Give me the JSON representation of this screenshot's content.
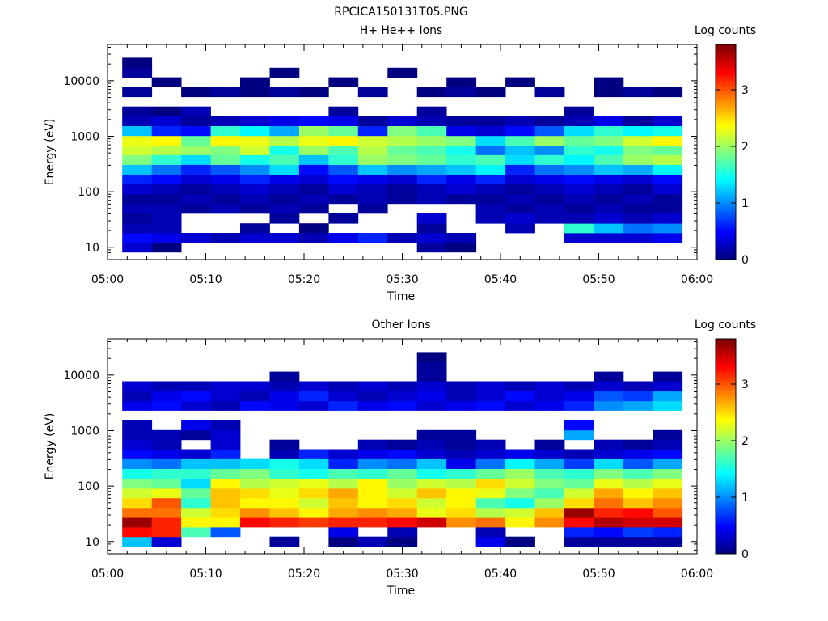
{
  "figure": {
    "title": "RPCICA150131T05.PNG"
  },
  "chart_data": [
    {
      "type": "heatmap",
      "title": "H+ He++ Ions",
      "xlabel": "Time",
      "ylabel": "Energy (eV)",
      "x_ticks": [
        "05:00",
        "05:10",
        "05:20",
        "05:30",
        "05:40",
        "05:50",
        "06:00"
      ],
      "y_scale": "log",
      "y_ticks": [
        "10",
        "100",
        "1000",
        "10000"
      ],
      "ylim": [
        6,
        45000
      ],
      "colorbar": {
        "label": "Log counts",
        "ticks": [
          "0",
          "1",
          "2",
          "3"
        ],
        "range": [
          0,
          3.8
        ],
        "colormap": "jet"
      },
      "time_bins": [
        "05:03",
        "05:06",
        "05:09",
        "05:12",
        "05:15",
        "05:18",
        "05:21",
        "05:24",
        "05:27",
        "05:30",
        "05:33",
        "05:36",
        "05:39",
        "05:42",
        "05:45",
        "05:48",
        "05:51",
        "05:54",
        "05:57"
      ],
      "energy_bins_eV": [
        10,
        15,
        22,
        33,
        50,
        75,
        110,
        170,
        250,
        380,
        560,
        840,
        1250,
        1900,
        2800,
        4200,
        6300,
        9500,
        14000,
        21000,
        32000
      ],
      "log_counts": [
        [
          0.3,
          0.0,
          null,
          null,
          null,
          null,
          null,
          null,
          null,
          null,
          0.1,
          0.0,
          null,
          null,
          null,
          null,
          null,
          null,
          null
        ],
        [
          0.5,
          0.4,
          0.3,
          0.2,
          0.3,
          0.3,
          0.2,
          0.4,
          0.6,
          0.2,
          0.3,
          0.2,
          null,
          null,
          null,
          0.3,
          0.3,
          0.3,
          0.4
        ],
        [
          0.2,
          0.2,
          null,
          null,
          0.1,
          null,
          0.0,
          null,
          null,
          null,
          0.1,
          null,
          null,
          0.2,
          null,
          1.6,
          1.2,
          0.9,
          1.0
        ],
        [
          0.1,
          0.2,
          null,
          null,
          null,
          0.1,
          null,
          0.1,
          null,
          null,
          0.3,
          null,
          0.2,
          0.3,
          0.2,
          0.2,
          0.3,
          0.2,
          0.3
        ],
        [
          0.2,
          0.2,
          0.1,
          0.2,
          0.1,
          0.2,
          0.1,
          null,
          0.1,
          null,
          null,
          null,
          0.2,
          0.1,
          0.2,
          0.1,
          0.2,
          0.1,
          0.1
        ],
        [
          0.1,
          0.1,
          0.2,
          0.1,
          0.2,
          0.1,
          0.2,
          0.1,
          0.2,
          0.1,
          0.2,
          0.1,
          0.1,
          0.2,
          0.1,
          0.2,
          0.1,
          0.2,
          0.1
        ],
        [
          0.3,
          0.2,
          0.1,
          0.2,
          0.3,
          0.2,
          0.1,
          0.3,
          0.2,
          0.1,
          0.2,
          0.3,
          0.2,
          0.1,
          0.2,
          0.3,
          0.2,
          0.1,
          0.3
        ],
        [
          0.6,
          0.5,
          0.3,
          0.4,
          0.6,
          0.4,
          0.3,
          0.5,
          0.4,
          0.3,
          0.6,
          0.4,
          0.6,
          0.3,
          0.4,
          0.5,
          0.4,
          0.3,
          0.5
        ],
        [
          1.2,
          0.9,
          0.6,
          0.8,
          1.0,
          1.3,
          0.5,
          0.8,
          1.2,
          1.0,
          1.1,
          1.2,
          1.4,
          0.6,
          0.9,
          1.0,
          1.2,
          1.1,
          1.4
        ],
        [
          1.9,
          1.6,
          1.3,
          1.8,
          1.5,
          1.7,
          1.2,
          1.6,
          2.0,
          1.9,
          1.8,
          1.6,
          1.7,
          1.3,
          1.6,
          1.4,
          1.7,
          2.0,
          2.1
        ],
        [
          2.2,
          2.1,
          2.0,
          1.9,
          2.2,
          1.5,
          2.0,
          1.7,
          2.1,
          1.8,
          1.7,
          1.5,
          0.9,
          1.2,
          1.0,
          1.6,
          1.5,
          1.9,
          1.8
        ],
        [
          2.3,
          2.4,
          1.8,
          2.4,
          2.3,
          2.1,
          2.3,
          2.4,
          2.2,
          2.1,
          2.0,
          1.9,
          1.3,
          1.7,
          2.0,
          1.8,
          1.9,
          2.2,
          2.4
        ],
        [
          1.2,
          0.6,
          0.5,
          1.6,
          1.4,
          1.1,
          2.0,
          1.8,
          0.6,
          1.9,
          1.7,
          0.4,
          0.3,
          0.5,
          0.8,
          1.3,
          1.6,
          1.4,
          1.5
        ],
        [
          0.2,
          0.3,
          0.1,
          0.2,
          0.3,
          0.4,
          0.5,
          0.4,
          0.1,
          0.3,
          0.2,
          0.1,
          0.1,
          0.2,
          0.1,
          0.2,
          0.4,
          0.1,
          0.3
        ],
        [
          0.1,
          0.0,
          0.2,
          null,
          null,
          null,
          null,
          0.1,
          null,
          null,
          0.1,
          null,
          null,
          null,
          null,
          0.1,
          null,
          null,
          null
        ],
        [
          null,
          null,
          null,
          null,
          null,
          null,
          null,
          null,
          null,
          null,
          null,
          null,
          null,
          null,
          null,
          null,
          null,
          null,
          null
        ],
        [
          0.1,
          null,
          0.0,
          0.1,
          0.0,
          0.1,
          0.0,
          null,
          0.1,
          null,
          0.0,
          0.1,
          0.0,
          null,
          0.1,
          null,
          0.0,
          0.1,
          0.0
        ],
        [
          null,
          0.0,
          null,
          null,
          0.0,
          null,
          null,
          0.0,
          null,
          null,
          null,
          0.0,
          null,
          0.0,
          null,
          null,
          0.0,
          null,
          null
        ],
        [
          0.1,
          null,
          null,
          null,
          null,
          0.0,
          null,
          null,
          null,
          0.0,
          null,
          null,
          null,
          null,
          null,
          null,
          null,
          null,
          null
        ],
        [
          0.0,
          null,
          null,
          null,
          null,
          null,
          null,
          null,
          null,
          null,
          null,
          null,
          null,
          null,
          null,
          null,
          null,
          null,
          null
        ],
        [
          null,
          null,
          null,
          null,
          null,
          null,
          null,
          null,
          null,
          null,
          null,
          null,
          null,
          null,
          null,
          null,
          null,
          null,
          null
        ]
      ]
    },
    {
      "type": "heatmap",
      "title": "Other Ions",
      "xlabel": "Time",
      "ylabel": "Energy (eV)",
      "x_ticks": [
        "05:00",
        "05:10",
        "05:20",
        "05:30",
        "05:40",
        "05:50",
        "06:00"
      ],
      "y_scale": "log",
      "y_ticks": [
        "10",
        "100",
        "1000",
        "10000"
      ],
      "ylim": [
        6,
        45000
      ],
      "colorbar": {
        "label": "Log counts",
        "ticks": [
          "0",
          "1",
          "2",
          "3"
        ],
        "range": [
          0,
          3.8
        ],
        "colormap": "jet"
      },
      "time_bins": [
        "05:03",
        "05:06",
        "05:09",
        "05:12",
        "05:15",
        "05:18",
        "05:21",
        "05:24",
        "05:27",
        "05:30",
        "05:33",
        "05:36",
        "05:39",
        "05:42",
        "05:45",
        "05:48",
        "05:51",
        "05:54",
        "05:57"
      ],
      "energy_bins_eV": [
        10,
        15,
        22,
        33,
        50,
        75,
        110,
        170,
        250,
        380,
        560,
        840,
        1250,
        1900,
        2800,
        4200,
        6300,
        9500,
        14000,
        21000,
        32000
      ],
      "log_counts": [
        [
          1.2,
          0.3,
          null,
          null,
          null,
          0.1,
          null,
          0.0,
          0.2,
          0.0,
          null,
          null,
          0.4,
          0.0,
          null,
          0.1,
          0.1,
          0.1,
          0.1
        ],
        [
          3.3,
          3.2,
          1.7,
          0.8,
          null,
          null,
          null,
          0.4,
          null,
          0.2,
          null,
          null,
          0.2,
          null,
          null,
          0.6,
          0.5,
          0.7,
          0.6
        ],
        [
          3.7,
          3.2,
          2.4,
          2.4,
          3.3,
          3.2,
          3.1,
          3.2,
          3.2,
          3.3,
          3.5,
          2.8,
          2.9,
          2.4,
          2.8,
          3.3,
          3.6,
          3.5,
          3.5
        ],
        [
          2.9,
          2.9,
          2.2,
          2.5,
          2.8,
          2.6,
          2.4,
          2.7,
          2.8,
          2.7,
          2.3,
          2.5,
          2.1,
          2.2,
          2.6,
          3.7,
          3.2,
          3.3,
          3.0
        ],
        [
          2.5,
          3.0,
          1.6,
          2.6,
          2.4,
          2.4,
          2.2,
          2.6,
          2.4,
          2.5,
          2.2,
          2.4,
          1.7,
          1.5,
          2.0,
          2.5,
          2.9,
          2.6,
          2.8
        ],
        [
          2.2,
          2.3,
          1.8,
          2.6,
          2.5,
          2.3,
          2.5,
          2.7,
          2.4,
          2.2,
          2.6,
          2.4,
          2.3,
          1.9,
          1.7,
          2.2,
          2.7,
          2.4,
          2.6
        ],
        [
          1.9,
          1.8,
          1.3,
          2.4,
          2.1,
          2.2,
          2.3,
          2.1,
          2.4,
          2.0,
          2.2,
          2.1,
          2.5,
          2.2,
          1.9,
          1.8,
          2.3,
          2.1,
          2.3
        ],
        [
          1.5,
          1.6,
          1.6,
          1.8,
          1.9,
          1.6,
          1.5,
          1.7,
          1.6,
          1.8,
          1.5,
          1.6,
          1.8,
          2.0,
          1.7,
          1.6,
          1.9,
          1.7,
          1.9
        ],
        [
          1.0,
          0.9,
          1.2,
          1.2,
          1.3,
          1.5,
          1.3,
          0.6,
          1.0,
          0.9,
          1.2,
          0.4,
          0.9,
          1.4,
          1.1,
          0.7,
          1.3,
          0.8,
          1.1
        ],
        [
          0.5,
          0.4,
          0.3,
          0.6,
          null,
          0.2,
          0.6,
          0.3,
          0.4,
          0.5,
          0.3,
          0.2,
          0.3,
          0.4,
          0.3,
          0.2,
          0.3,
          0.4,
          0.5
        ],
        [
          0.3,
          0.2,
          null,
          0.3,
          null,
          0.1,
          null,
          null,
          0.2,
          0.1,
          0.2,
          0.1,
          0.2,
          null,
          0.1,
          null,
          0.2,
          0.1,
          0.2
        ],
        [
          0.2,
          0.2,
          0.1,
          0.3,
          null,
          null,
          null,
          null,
          null,
          null,
          0.1,
          0.1,
          null,
          null,
          null,
          1.1,
          null,
          null,
          0.1
        ],
        [
          0.2,
          null,
          0.4,
          0.2,
          null,
          null,
          null,
          null,
          null,
          null,
          null,
          null,
          null,
          null,
          null,
          0.5,
          null,
          null,
          null
        ],
        [
          null,
          null,
          null,
          null,
          null,
          null,
          null,
          null,
          null,
          null,
          null,
          null,
          null,
          null,
          null,
          null,
          null,
          null,
          null
        ],
        [
          0.4,
          0.5,
          0.3,
          0.2,
          0.5,
          0.4,
          0.3,
          0.6,
          0.4,
          0.5,
          0.3,
          0.4,
          0.5,
          0.3,
          0.4,
          0.6,
          1.0,
          1.1,
          1.3
        ],
        [
          0.2,
          0.4,
          0.5,
          0.3,
          0.2,
          0.4,
          0.6,
          0.3,
          0.2,
          0.3,
          0.4,
          0.2,
          0.3,
          0.5,
          0.3,
          0.4,
          0.8,
          0.7,
          1.1
        ],
        [
          0.3,
          0.2,
          0.2,
          0.3,
          0.3,
          0.2,
          0.3,
          0.2,
          0.3,
          0.2,
          0.3,
          0.2,
          0.3,
          0.2,
          0.3,
          0.2,
          0.3,
          0.2,
          0.3
        ],
        [
          null,
          null,
          null,
          null,
          null,
          0.1,
          null,
          null,
          null,
          null,
          0.1,
          null,
          null,
          null,
          null,
          null,
          0.1,
          null,
          0.1
        ],
        [
          null,
          null,
          null,
          null,
          null,
          null,
          null,
          null,
          null,
          null,
          0.1,
          null,
          null,
          null,
          null,
          null,
          null,
          null,
          null
        ],
        [
          null,
          null,
          null,
          null,
          null,
          null,
          null,
          null,
          null,
          null,
          0.0,
          null,
          null,
          null,
          null,
          null,
          null,
          null,
          null
        ],
        [
          null,
          null,
          null,
          null,
          null,
          null,
          null,
          null,
          null,
          null,
          null,
          null,
          null,
          null,
          null,
          null,
          null,
          null,
          null
        ]
      ]
    }
  ]
}
